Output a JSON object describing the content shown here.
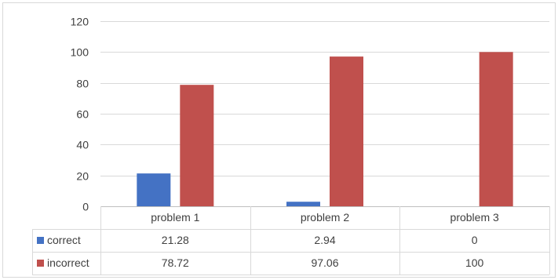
{
  "chart_data": {
    "type": "bar",
    "categories": [
      "problem 1",
      "problem 2",
      "problem 3"
    ],
    "series": [
      {
        "name": "correct",
        "values": [
          21.28,
          2.94,
          0
        ],
        "value_labels": [
          "21.28",
          "2.94",
          "0"
        ],
        "color": "#4472C4"
      },
      {
        "name": "incorrect",
        "values": [
          78.72,
          97.06,
          100
        ],
        "value_labels": [
          "78.72",
          "97.06",
          "100"
        ],
        "color": "#C0504D"
      }
    ],
    "yticks": [
      "0",
      "20",
      "40",
      "60",
      "80",
      "100",
      "120"
    ],
    "ylim": [
      0,
      120
    ],
    "grid": true,
    "legend": "data-table"
  }
}
